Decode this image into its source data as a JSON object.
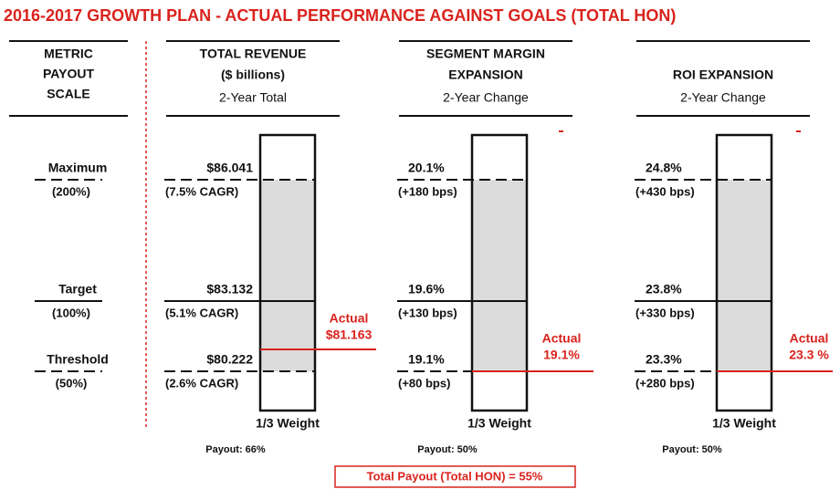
{
  "title": "2016-2017 GROWTH PLAN - ACTUAL PERFORMANCE AGAINST GOALS (TOTAL HON)",
  "scale": {
    "heading": [
      "METRIC",
      "PAYOUT",
      "SCALE"
    ],
    "levels": [
      {
        "name": "Maximum",
        "payout": "(200%)"
      },
      {
        "name": "Target",
        "payout": "(100%)"
      },
      {
        "name": "Threshold",
        "payout": "(50%)"
      }
    ]
  },
  "metrics": [
    {
      "heading": [
        "TOTAL REVENUE",
        "($ billions)"
      ],
      "subheading": "2-Year Total",
      "levels": [
        {
          "value": "$86.041",
          "detail": "(7.5% CAGR)"
        },
        {
          "value": "$83.132",
          "detail": "(5.1% CAGR)"
        },
        {
          "value": "$80.222",
          "detail": "(2.6% CAGR)"
        }
      ],
      "actual": [
        "Actual",
        "$81.163"
      ],
      "weight": "1/3 Weight",
      "payout": "Payout: 66%"
    },
    {
      "heading": [
        "SEGMENT MARGIN",
        "EXPANSION"
      ],
      "subheading": "2-Year Change",
      "levels": [
        {
          "value": "20.1%",
          "detail": "(+180 bps)"
        },
        {
          "value": "19.6%",
          "detail": "(+130 bps)"
        },
        {
          "value": "19.1%",
          "detail": "(+80 bps)"
        }
      ],
      "actual": [
        "Actual",
        "19.1%"
      ],
      "weight": "1/3 Weight",
      "payout": "Payout: 50%"
    },
    {
      "heading": [
        "ROI EXPANSION"
      ],
      "subheading": "2-Year Change",
      "levels": [
        {
          "value": "24.8%",
          "detail": "(+430 bps)"
        },
        {
          "value": "23.8%",
          "detail": "(+330 bps)"
        },
        {
          "value": "23.3%",
          "detail": "(+280 bps)"
        }
      ],
      "actual": [
        "Actual",
        "23.3 %"
      ],
      "weight": "1/3 Weight",
      "payout": "Payout: 50%"
    }
  ],
  "total": "Total Payout (Total HON) = 55%"
}
